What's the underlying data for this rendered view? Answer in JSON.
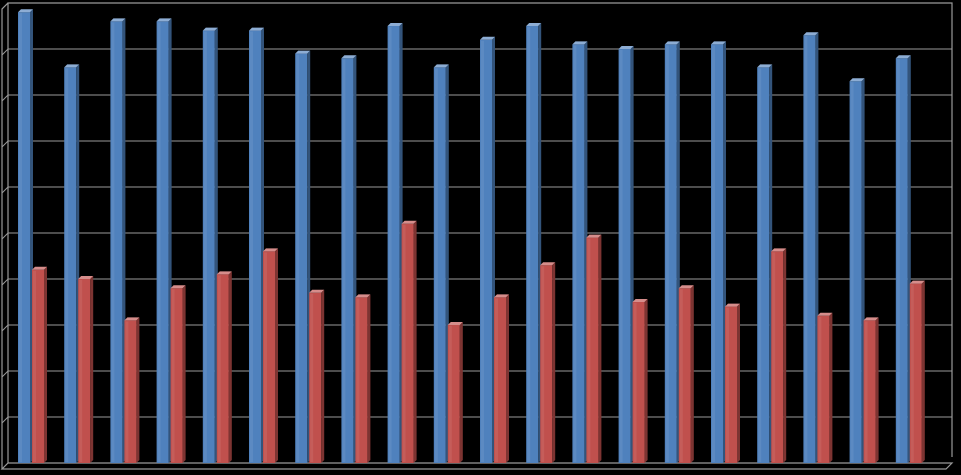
{
  "chart_data": {
    "type": "bar",
    "style": "3d-clustered-column",
    "title": "",
    "xlabel": "",
    "ylabel": "",
    "ylim": [
      0,
      10
    ],
    "grid": true,
    "legend": "none",
    "colors": {
      "background": "#000000",
      "gridline": "#9a9a9a",
      "series_1": "#4f81bd",
      "series_2": "#c0504d"
    },
    "series": [
      {
        "values": [
          9.8,
          8.6,
          9.6,
          9.6,
          9.4,
          9.4,
          8.9,
          8.8,
          9.5,
          8.6,
          9.2,
          9.5,
          9.1,
          9.0,
          9.1,
          9.1,
          8.6,
          9.3,
          8.3,
          8.8
        ]
      },
      {
        "values": [
          4.2,
          4.0,
          3.1,
          3.8,
          4.1,
          4.6,
          3.7,
          3.6,
          5.2,
          3.0,
          3.6,
          4.3,
          4.9,
          3.5,
          3.8,
          3.4,
          4.6,
          3.2,
          3.1,
          3.9
        ]
      }
    ]
  }
}
